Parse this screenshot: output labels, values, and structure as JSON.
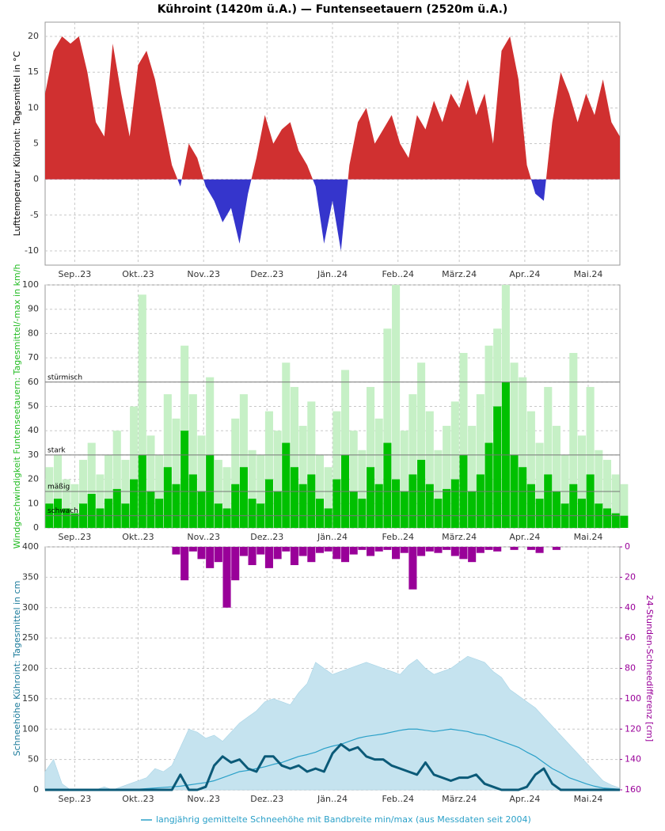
{
  "title": "Kühroint (1420m ü.A.) — Funtenseetauern (2520m ü.A.)",
  "chart_data": [
    {
      "type": "area",
      "ylabel": "Lufttemperatur Kühroint: Tagesmittel in °C",
      "ylabel_color": "#000000",
      "x": [
        0,
        4,
        8,
        12,
        16,
        20,
        24,
        28,
        32,
        36,
        40,
        44,
        48,
        52,
        56,
        60,
        64,
        68,
        72,
        76,
        80,
        84,
        88,
        92,
        96,
        100,
        104,
        108,
        112,
        116,
        120,
        124,
        128,
        132,
        136,
        140,
        144,
        148,
        152,
        156,
        160,
        164,
        168,
        172,
        176,
        180,
        184,
        188,
        192,
        196,
        200,
        204,
        208,
        212,
        216,
        220,
        224,
        228,
        232,
        236,
        240,
        244,
        248,
        252,
        256,
        260,
        264,
        268,
        272
      ],
      "xlim": [
        0,
        272
      ],
      "xticks": [
        {
          "value": 14,
          "label": "Sep..23"
        },
        {
          "value": 44,
          "label": "Okt..23"
        },
        {
          "value": 75,
          "label": "Nov..23"
        },
        {
          "value": 105,
          "label": "Dez..23"
        },
        {
          "value": 136,
          "label": "Jän..24"
        },
        {
          "value": 167,
          "label": "Feb..24"
        },
        {
          "value": 196,
          "label": "März.24"
        },
        {
          "value": 227,
          "label": "Apr..24"
        },
        {
          "value": 257,
          "label": "Mai.24"
        }
      ],
      "ylim": [
        -12,
        22
      ],
      "yticks": [
        -10,
        -5,
        0,
        5,
        10,
        15,
        20
      ],
      "grid": true,
      "series": [
        {
          "color": "#d03030",
          "negative_color": "#3535cc",
          "values": [
            12,
            18,
            20,
            19,
            20,
            15,
            8,
            6,
            19,
            12,
            6,
            16,
            18,
            14,
            8,
            2,
            -1,
            5,
            3,
            -1,
            -3,
            -6,
            -4,
            -9,
            -2,
            3,
            9,
            5,
            7,
            8,
            4,
            2,
            -1,
            -9,
            -3,
            -10,
            2,
            8,
            10,
            5,
            7,
            9,
            5,
            3,
            9,
            7,
            11,
            8,
            12,
            10,
            14,
            9,
            12,
            5,
            18,
            20,
            14,
            2,
            -2,
            -3,
            8,
            15,
            12,
            8,
            12,
            9,
            14,
            8,
            6
          ]
        }
      ]
    },
    {
      "type": "bar",
      "ylabel": "Windgeschwindigkeit Funtenseetauern: Tagesmittel/-max in km/h",
      "ylabel_color": "#22bb22",
      "x": [
        0,
        4,
        8,
        12,
        16,
        20,
        24,
        28,
        32,
        36,
        40,
        44,
        48,
        52,
        56,
        60,
        64,
        68,
        72,
        76,
        80,
        84,
        88,
        92,
        96,
        100,
        104,
        108,
        112,
        116,
        120,
        124,
        128,
        132,
        136,
        140,
        144,
        148,
        152,
        156,
        160,
        164,
        168,
        172,
        176,
        180,
        184,
        188,
        192,
        196,
        200,
        204,
        208,
        212,
        216,
        220,
        224,
        228,
        232,
        236,
        240,
        244,
        248,
        252,
        256,
        260,
        264,
        268,
        272
      ],
      "xlim": [
        0,
        272
      ],
      "xticks": [
        {
          "value": 14,
          "label": "Sep..23"
        },
        {
          "value": 44,
          "label": "Okt..23"
        },
        {
          "value": 75,
          "label": "Nov..23"
        },
        {
          "value": 105,
          "label": "Dez..23"
        },
        {
          "value": 136,
          "label": "Jän..24"
        },
        {
          "value": 167,
          "label": "Feb..24"
        },
        {
          "value": 196,
          "label": "März.24"
        },
        {
          "value": 227,
          "label": "Apr..24"
        },
        {
          "value": 257,
          "label": "Mai.24"
        }
      ],
      "ylim": [
        0,
        100
      ],
      "yticks": [
        0,
        10,
        20,
        30,
        40,
        50,
        60,
        70,
        80,
        90,
        100
      ],
      "grid": true,
      "thresholds": [
        {
          "value": 60,
          "label": "stürmisch"
        },
        {
          "value": 30,
          "label": "stark"
        },
        {
          "value": 15,
          "label": "mäßig"
        },
        {
          "value": 5,
          "label": "schwach"
        }
      ],
      "series": [
        {
          "color": "#c6f0c6",
          "values": [
            25,
            30,
            20,
            18,
            28,
            35,
            22,
            30,
            40,
            28,
            50,
            96,
            38,
            30,
            55,
            45,
            75,
            55,
            38,
            62,
            28,
            25,
            45,
            55,
            32,
            30,
            48,
            40,
            68,
            58,
            42,
            52,
            30,
            25,
            48,
            65,
            40,
            32,
            58,
            45,
            82,
            100,
            40,
            55,
            68,
            48,
            32,
            42,
            52,
            72,
            42,
            55,
            75,
            82,
            100,
            68,
            62,
            48,
            35,
            58,
            42,
            30,
            72,
            38,
            58,
            32,
            28,
            22,
            18
          ]
        },
        {
          "color": "#00c000",
          "values": [
            10,
            12,
            8,
            6,
            10,
            14,
            8,
            12,
            16,
            10,
            20,
            30,
            15,
            12,
            25,
            18,
            40,
            22,
            15,
            30,
            10,
            8,
            18,
            25,
            12,
            10,
            20,
            15,
            35,
            25,
            18,
            22,
            12,
            8,
            20,
            30,
            15,
            12,
            25,
            18,
            35,
            20,
            15,
            22,
            28,
            18,
            12,
            16,
            20,
            30,
            15,
            22,
            35,
            50,
            60,
            30,
            25,
            18,
            12,
            22,
            15,
            10,
            18,
            12,
            22,
            10,
            8,
            6,
            5
          ]
        }
      ]
    },
    {
      "type": "combo",
      "ylabel": "Schneehöhe Kühroint: Tagesmittel in cm",
      "ylabel_color": "#1a7a9a",
      "y2label": "24-Stunden-Schneedifferenz [cm]",
      "y2label_color": "#990099",
      "x": [
        0,
        4,
        8,
        12,
        16,
        20,
        24,
        28,
        32,
        36,
        40,
        44,
        48,
        52,
        56,
        60,
        64,
        68,
        72,
        76,
        80,
        84,
        88,
        92,
        96,
        100,
        104,
        108,
        112,
        116,
        120,
        124,
        128,
        132,
        136,
        140,
        144,
        148,
        152,
        156,
        160,
        164,
        168,
        172,
        176,
        180,
        184,
        188,
        192,
        196,
        200,
        204,
        208,
        212,
        216,
        220,
        224,
        228,
        232,
        236,
        240,
        244,
        248,
        252,
        256,
        260,
        264,
        268,
        272
      ],
      "xlim": [
        0,
        272
      ],
      "xticks": [
        {
          "value": 14,
          "label": "Sep..23"
        },
        {
          "value": 44,
          "label": "Okt..23"
        },
        {
          "value": 75,
          "label": "Nov..23"
        },
        {
          "value": 105,
          "label": "Dez..23"
        },
        {
          "value": 136,
          "label": "Jän..24"
        },
        {
          "value": 167,
          "label": "Feb..24"
        },
        {
          "value": 196,
          "label": "März.24"
        },
        {
          "value": 227,
          "label": "Apr..24"
        },
        {
          "value": 257,
          "label": "Mai.24"
        }
      ],
      "ylim": [
        0,
        400
      ],
      "yticks": [
        0,
        50,
        100,
        150,
        200,
        250,
        300,
        350,
        400
      ],
      "y2lim": [
        160,
        0
      ],
      "y2ticks": [
        0,
        20,
        40,
        60,
        80,
        100,
        120,
        140,
        160
      ],
      "grid": true,
      "series": [
        {
          "type": "band",
          "color": "#c5e3ef",
          "low": [
            0,
            0,
            0,
            0,
            0,
            0,
            0,
            0,
            0,
            0,
            0,
            0,
            0,
            0,
            0,
            0,
            0,
            0,
            0,
            0,
            0,
            0,
            0,
            0,
            0,
            0,
            0,
            0,
            0,
            0,
            0,
            0,
            0,
            0,
            0,
            0,
            0,
            0,
            0,
            0,
            0,
            0,
            0,
            0,
            0,
            0,
            0,
            0,
            0,
            0,
            0,
            0,
            0,
            0,
            0,
            0,
            0,
            0,
            0,
            0,
            0,
            0,
            0,
            0,
            0,
            0,
            0,
            0,
            0
          ],
          "high": [
            30,
            50,
            10,
            0,
            0,
            0,
            0,
            5,
            0,
            5,
            10,
            15,
            20,
            35,
            30,
            40,
            70,
            100,
            95,
            85,
            90,
            80,
            95,
            110,
            120,
            130,
            145,
            150,
            145,
            140,
            160,
            175,
            210,
            200,
            190,
            195,
            200,
            205,
            210,
            205,
            200,
            195,
            190,
            205,
            215,
            200,
            190,
            195,
            200,
            210,
            220,
            215,
            210,
            195,
            185,
            165,
            155,
            145,
            135,
            120,
            105,
            90,
            75,
            60,
            45,
            30,
            15,
            8,
            3
          ]
        },
        {
          "type": "bar",
          "axis": "y2",
          "color": "#990099",
          "values": [
            0,
            0,
            0,
            0,
            0,
            0,
            0,
            0,
            0,
            0,
            0,
            0,
            0,
            0,
            0,
            5,
            22,
            3,
            8,
            14,
            10,
            40,
            22,
            6,
            12,
            5,
            14,
            8,
            3,
            12,
            6,
            10,
            4,
            3,
            8,
            10,
            5,
            2,
            6,
            3,
            2,
            8,
            4,
            28,
            6,
            3,
            4,
            2,
            6,
            8,
            10,
            4,
            2,
            3,
            0,
            2,
            0,
            2,
            4,
            0,
            2,
            0,
            0,
            0,
            0,
            0,
            0,
            0,
            0
          ]
        },
        {
          "type": "line",
          "color": "#2aa0c8",
          "width": 1.2,
          "name": "langjährig gemittelte Schneehöhe mit Bandbreite min/max (aus Messdaten seit 2004)",
          "values": [
            0,
            0,
            0,
            0,
            0,
            0,
            0,
            0,
            0,
            0,
            1,
            1,
            2,
            3,
            4,
            5,
            6,
            8,
            10,
            12,
            15,
            20,
            25,
            30,
            32,
            35,
            38,
            42,
            45,
            50,
            55,
            58,
            62,
            68,
            72,
            75,
            80,
            85,
            88,
            90,
            92,
            95,
            98,
            100,
            100,
            98,
            96,
            98,
            100,
            98,
            96,
            92,
            90,
            85,
            80,
            75,
            70,
            62,
            55,
            45,
            35,
            28,
            20,
            15,
            10,
            6,
            3,
            2,
            1
          ]
        },
        {
          "type": "line",
          "color": "#0b5a78",
          "width": 3,
          "values": [
            0,
            0,
            0,
            0,
            0,
            0,
            0,
            0,
            0,
            0,
            0,
            0,
            0,
            0,
            0,
            0,
            25,
            0,
            0,
            5,
            40,
            55,
            45,
            50,
            35,
            30,
            55,
            55,
            40,
            35,
            40,
            30,
            35,
            30,
            60,
            75,
            65,
            70,
            55,
            50,
            50,
            40,
            35,
            30,
            25,
            45,
            25,
            20,
            15,
            20,
            20,
            25,
            10,
            5,
            0,
            0,
            0,
            5,
            25,
            35,
            10,
            0,
            0,
            0,
            0,
            0,
            0,
            0,
            0
          ]
        }
      ]
    }
  ]
}
